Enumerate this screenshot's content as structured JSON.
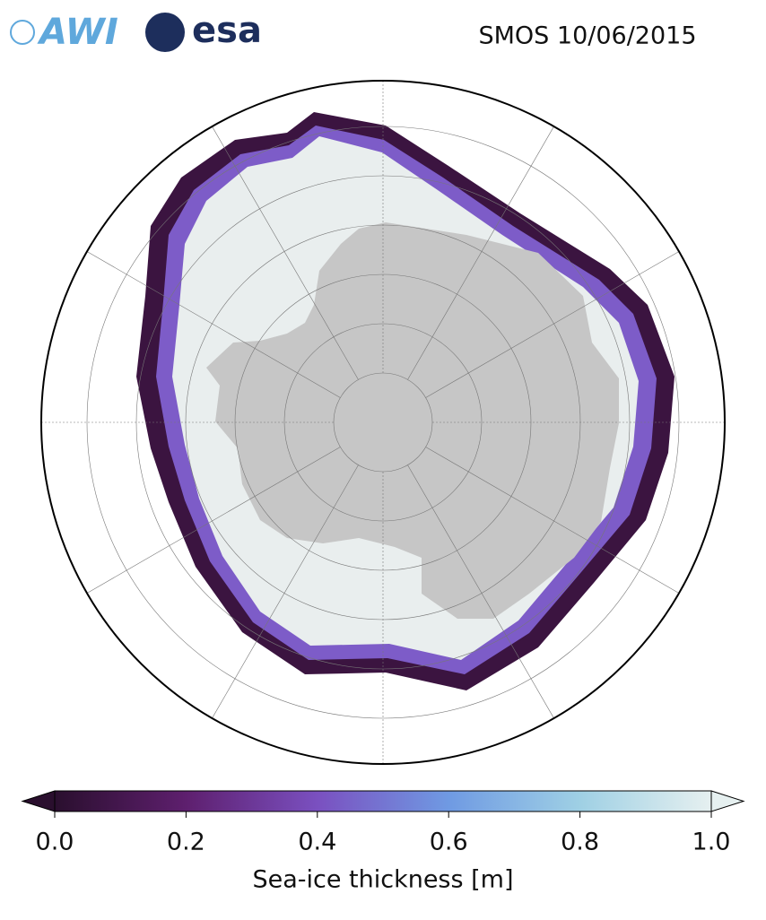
{
  "header": {
    "logos": [
      "AWI",
      "esa"
    ],
    "title": "SMOS 10/06/2015"
  },
  "colorbar": {
    "label": "Sea-ice thickness [m]",
    "lim": [
      0,
      1
    ],
    "ticks": [
      {
        "value": 0,
        "label": "0.0"
      },
      {
        "value": 0.2,
        "label": "0.2"
      },
      {
        "value": 0.4,
        "label": "0.4"
      },
      {
        "value": 0.6,
        "label": "0.6"
      },
      {
        "value": 0.8,
        "label": "0.8"
      },
      {
        "value": 1,
        "label": "1.0"
      }
    ],
    "colors": [
      "#2a0f2e",
      "#5e1f6e",
      "#7a50c0",
      "#6f9ae3",
      "#9fd0e4",
      "#e6f0f0"
    ]
  }
}
